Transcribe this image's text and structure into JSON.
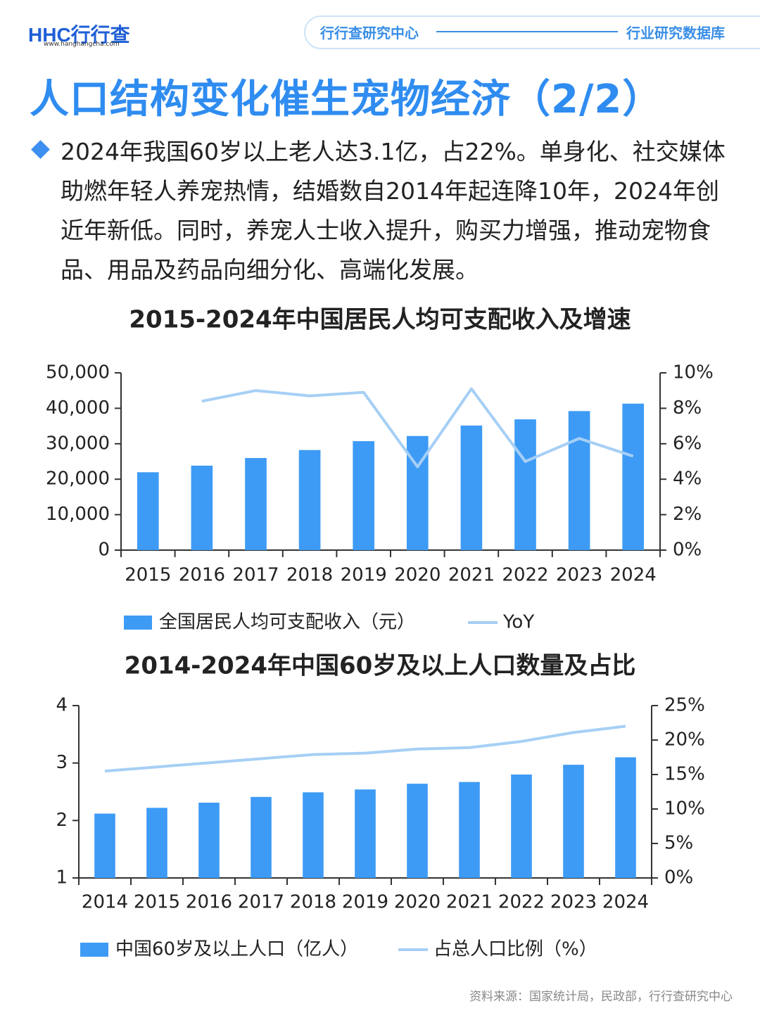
{
  "header": {
    "logo": "HHC行行查",
    "logo_url": "www.hanghangcha.com",
    "left": "行行查研究中心",
    "right": "行业研究数据库"
  },
  "title": "人口结构变化催生宠物经济（2/2）",
  "body": "2024年我国60岁以上老人达3.1亿，占22%。单身化、社交媒体助燃年轻人养宠热情，结婚数自2014年起连降10年，2024年创近年新低。同时，养宠人士收入提升，购买力增强，推动宠物食品、用品及药品向细分化、高端化发展。",
  "source": "资料来源：国家统计局，民政部，行行查研究中心",
  "chart_data": [
    {
      "type": "bar",
      "title": "2015-2024年中国居民人均可支配收入及增速",
      "categories": [
        "2015",
        "2016",
        "2017",
        "2018",
        "2019",
        "2020",
        "2021",
        "2022",
        "2023",
        "2024"
      ],
      "series": [
        {
          "name": "全国居民人均可支配收入（元）",
          "color": "#3d9bf5",
          "values": [
            21966,
            23821,
            25974,
            28228,
            30733,
            32189,
            35128,
            36883,
            39218,
            41314
          ]
        },
        {
          "name": "YoY",
          "color": "#a6cff5",
          "axis": "y2",
          "values": [
            null,
            8.4,
            9.0,
            8.7,
            8.9,
            4.7,
            9.1,
            5.0,
            6.3,
            5.3
          ]
        }
      ],
      "ylim": [
        0,
        50000
      ],
      "yticks": [
        0,
        {
          "value": 10000,
          "label": "10,000"
        },
        {
          "value": 20000,
          "label": "20,000"
        },
        {
          "value": 30000,
          "label": "30,000"
        },
        {
          "value": 40000,
          "label": "40,000"
        },
        {
          "value": 50000,
          "label": "50,000"
        }
      ],
      "y2lim": [
        0,
        10
      ],
      "y2ticks": [
        {
          "value": 0,
          "label": "0%"
        },
        {
          "value": 2,
          "label": "2%"
        },
        {
          "value": 4,
          "label": "4%"
        },
        {
          "value": 6,
          "label": "6%"
        },
        {
          "value": 8,
          "label": "8%"
        },
        {
          "value": 10,
          "label": "10%"
        }
      ]
    },
    {
      "type": "bar",
      "title": "2014-2024年中国60岁及以上人口数量及占比",
      "categories": [
        "2014",
        "2015",
        "2016",
        "2017",
        "2018",
        "2019",
        "2020",
        "2021",
        "2022",
        "2023",
        "2024"
      ],
      "series": [
        {
          "name": "中国60岁及以上人口（亿人）",
          "color": "#3d9bf5",
          "values": [
            2.12,
            2.22,
            2.31,
            2.41,
            2.49,
            2.54,
            2.64,
            2.67,
            2.8,
            2.97,
            3.1
          ]
        },
        {
          "name": "占总人口比例（%）",
          "color": "#a6cff5",
          "axis": "y2",
          "values": [
            15.5,
            16.1,
            16.7,
            17.3,
            17.9,
            18.1,
            18.7,
            18.9,
            19.8,
            21.1,
            22.0
          ]
        }
      ],
      "ylim": [
        1,
        4
      ],
      "yticks": [
        1,
        2,
        3,
        4
      ],
      "y2lim": [
        0,
        25
      ],
      "y2ticks": [
        {
          "value": 0,
          "label": "0%"
        },
        {
          "value": 5,
          "label": "5%"
        },
        {
          "value": 10,
          "label": "10%"
        },
        {
          "value": 15,
          "label": "15%"
        },
        {
          "value": 20,
          "label": "20%"
        },
        {
          "value": 25,
          "label": "25%"
        }
      ]
    }
  ]
}
